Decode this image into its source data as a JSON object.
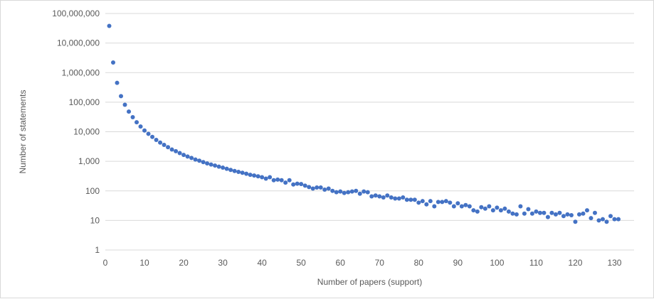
{
  "chart_data": {
    "type": "scatter",
    "title": "",
    "xlabel": "Number of papers (support)",
    "ylabel": "Number of statements",
    "xlim": [
      0,
      135
    ],
    "ylim": [
      1,
      100000000
    ],
    "yscale": "log",
    "x_ticks": [
      "0",
      "10",
      "20",
      "30",
      "40",
      "50",
      "60",
      "70",
      "80",
      "90",
      "100",
      "110",
      "120",
      "130"
    ],
    "y_ticks": [
      "1",
      "10",
      "100",
      "1,000",
      "10,000",
      "100,000",
      "1,000,000",
      "10,000,000",
      "100,000,000"
    ],
    "grid": "horizontal",
    "legend": "none",
    "marker_color": "#4472C4",
    "series": [
      {
        "x": [
          1,
          2,
          3,
          4,
          5,
          6,
          7,
          8,
          9,
          10,
          11,
          12,
          13,
          14,
          15,
          16,
          17,
          18,
          19,
          20,
          21,
          22,
          23,
          24,
          25,
          26,
          27,
          28,
          29,
          30,
          31,
          32,
          33,
          34,
          35,
          36,
          37,
          38,
          39,
          40,
          41,
          42,
          43,
          44,
          45,
          46,
          47,
          48,
          49,
          50,
          51,
          52,
          53,
          54,
          55,
          56,
          57,
          58,
          59,
          60,
          61,
          62,
          63,
          64,
          65,
          66,
          67,
          68,
          69,
          70,
          71,
          72,
          73,
          74,
          75,
          76,
          77,
          78,
          79,
          80,
          81,
          82,
          83,
          84,
          85,
          86,
          87,
          88,
          89,
          90,
          91,
          92,
          93,
          94,
          95,
          96,
          97,
          98,
          99,
          100,
          101,
          102,
          103,
          104,
          105,
          106,
          107,
          108,
          109,
          110,
          111,
          112,
          113,
          114,
          115,
          116,
          117,
          118,
          119,
          120,
          121,
          122,
          123,
          124,
          125,
          126,
          127,
          128,
          129,
          130,
          131
        ],
        "y": [
          38000000,
          2200000,
          450000,
          160000,
          82000,
          48000,
          31000,
          21000,
          15000,
          11000,
          8500,
          6700,
          5300,
          4300,
          3600,
          3000,
          2500,
          2200,
          1900,
          1650,
          1450,
          1300,
          1150,
          1050,
          940,
          850,
          780,
          720,
          660,
          610,
          560,
          510,
          470,
          440,
          410,
          380,
          350,
          330,
          310,
          290,
          260,
          290,
          230,
          240,
          230,
          190,
          230,
          165,
          175,
          170,
          150,
          135,
          120,
          130,
          130,
          110,
          120,
          100,
          90,
          95,
          85,
          90,
          95,
          100,
          80,
          95,
          90,
          65,
          70,
          65,
          60,
          70,
          60,
          55,
          55,
          60,
          50,
          50,
          50,
          40,
          45,
          35,
          45,
          30,
          42,
          42,
          45,
          40,
          30,
          38,
          30,
          33,
          30,
          22,
          20,
          28,
          25,
          30,
          22,
          27,
          22,
          25,
          20,
          17,
          16,
          30,
          17,
          24,
          17,
          20,
          18,
          18,
          13,
          18,
          16,
          18,
          14,
          16,
          15,
          9,
          16,
          17,
          22,
          12,
          18,
          10,
          11,
          9,
          14,
          11,
          11
        ]
      }
    ]
  }
}
